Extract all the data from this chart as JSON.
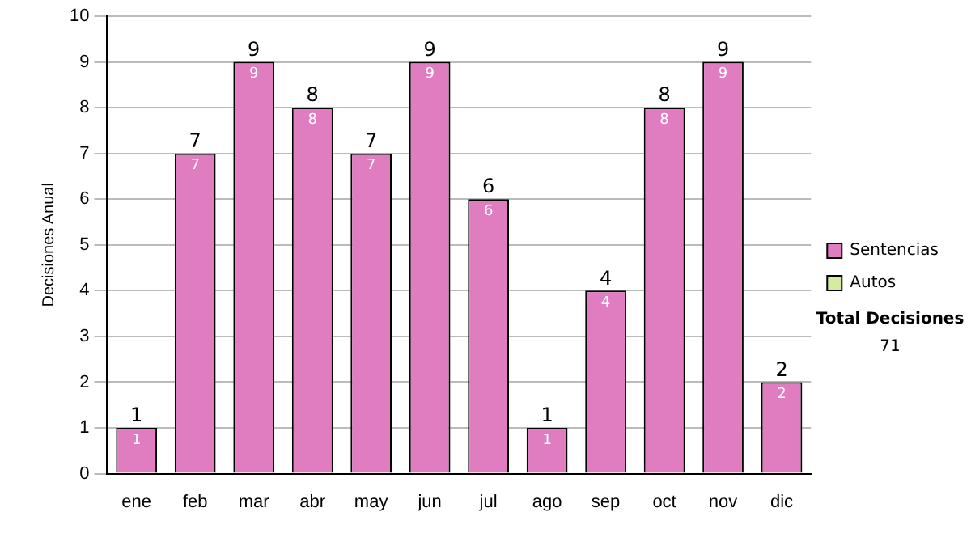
{
  "chart_data": {
    "type": "bar",
    "stacked": true,
    "ylabel": "Decisiones Anual",
    "categories": [
      "ene",
      "feb",
      "mar",
      "abr",
      "may",
      "jun",
      "jul",
      "ago",
      "sep",
      "oct",
      "nov",
      "dic"
    ],
    "series": [
      {
        "name": "Sentencias",
        "color": "#e07cc0",
        "values": [
          1,
          7,
          9,
          8,
          7,
          9,
          6,
          1,
          4,
          8,
          9,
          2
        ],
        "value_labels": [
          "1",
          "7",
          "9",
          "8",
          "7",
          "9",
          "6",
          "1",
          "4",
          "8",
          "9",
          "2"
        ]
      },
      {
        "name": "Autos",
        "color": "#d4eca0",
        "values": [
          0,
          0,
          0,
          0,
          0,
          0,
          0,
          0,
          0,
          0,
          0,
          0
        ]
      }
    ],
    "totals": [
      "1",
      "7",
      "9",
      "8",
      "7",
      "9",
      "6",
      "1",
      "4",
      "8",
      "9",
      "2"
    ],
    "ylim": [
      0,
      10
    ],
    "yticks": [
      0,
      1,
      2,
      3,
      4,
      5,
      6,
      7,
      8,
      9,
      10
    ],
    "grid": "y",
    "legend": "right",
    "annotations": [
      "Total Decisiones",
      "71"
    ]
  }
}
